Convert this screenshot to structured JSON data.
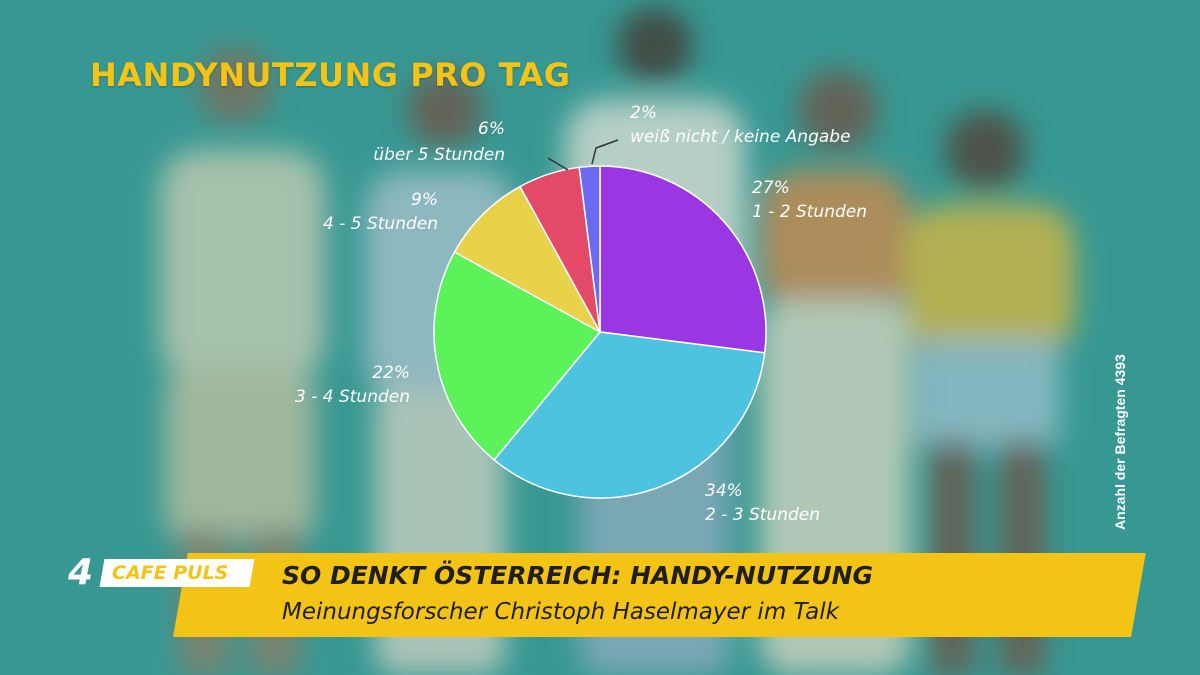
{
  "header": {
    "title": "HANDYNUTZUNG PRO TAG"
  },
  "side_note": "Anzahl der Befragten 4393",
  "lower_third": {
    "logo_number": "4",
    "logo_text": "CAFE PULS",
    "headline": "SO DENKT ÖSTERREICH: HANDY-NUTZUNG",
    "subline": "Meinungsforscher Christoph Haselmayer im Talk"
  },
  "chart_data": {
    "type": "pie",
    "title": "HANDYNUTZUNG PRO TAG",
    "start": "12 o'clock",
    "direction": "clockwise",
    "slices": [
      {
        "label": "1 - 2 Stunden",
        "percent_label": "27%",
        "value": 27,
        "color": "#9a36e2"
      },
      {
        "label": "2 - 3 Stunden",
        "percent_label": "34%",
        "value": 34,
        "color": "#4ec3e0"
      },
      {
        "label": "3 - 4 Stunden",
        "percent_label": "22%",
        "value": 22,
        "color": "#5cf25a"
      },
      {
        "label": "4 - 5 Stunden",
        "percent_label": "9%",
        "value": 9,
        "color": "#e8d24a"
      },
      {
        "label": "über 5 Stunden",
        "percent_label": "6%",
        "value": 6,
        "color": "#e24a68"
      },
      {
        "label": "weiß nicht / keine Angabe",
        "percent_label": "2%",
        "value": 2,
        "color": "#6a6af2"
      }
    ]
  }
}
